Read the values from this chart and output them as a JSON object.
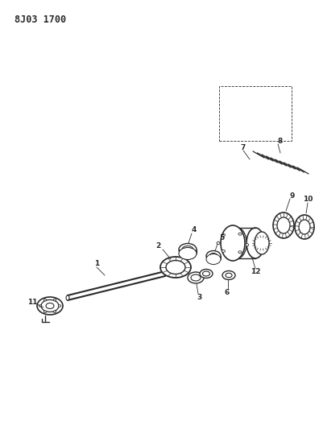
{
  "title": "8J03 1700",
  "bg_color": "#ffffff",
  "line_color": "#2a2a2a",
  "title_fontsize": 8.5,
  "fig_width": 3.96,
  "fig_height": 5.33,
  "dpi": 100,
  "label_fontsize": 6.5
}
